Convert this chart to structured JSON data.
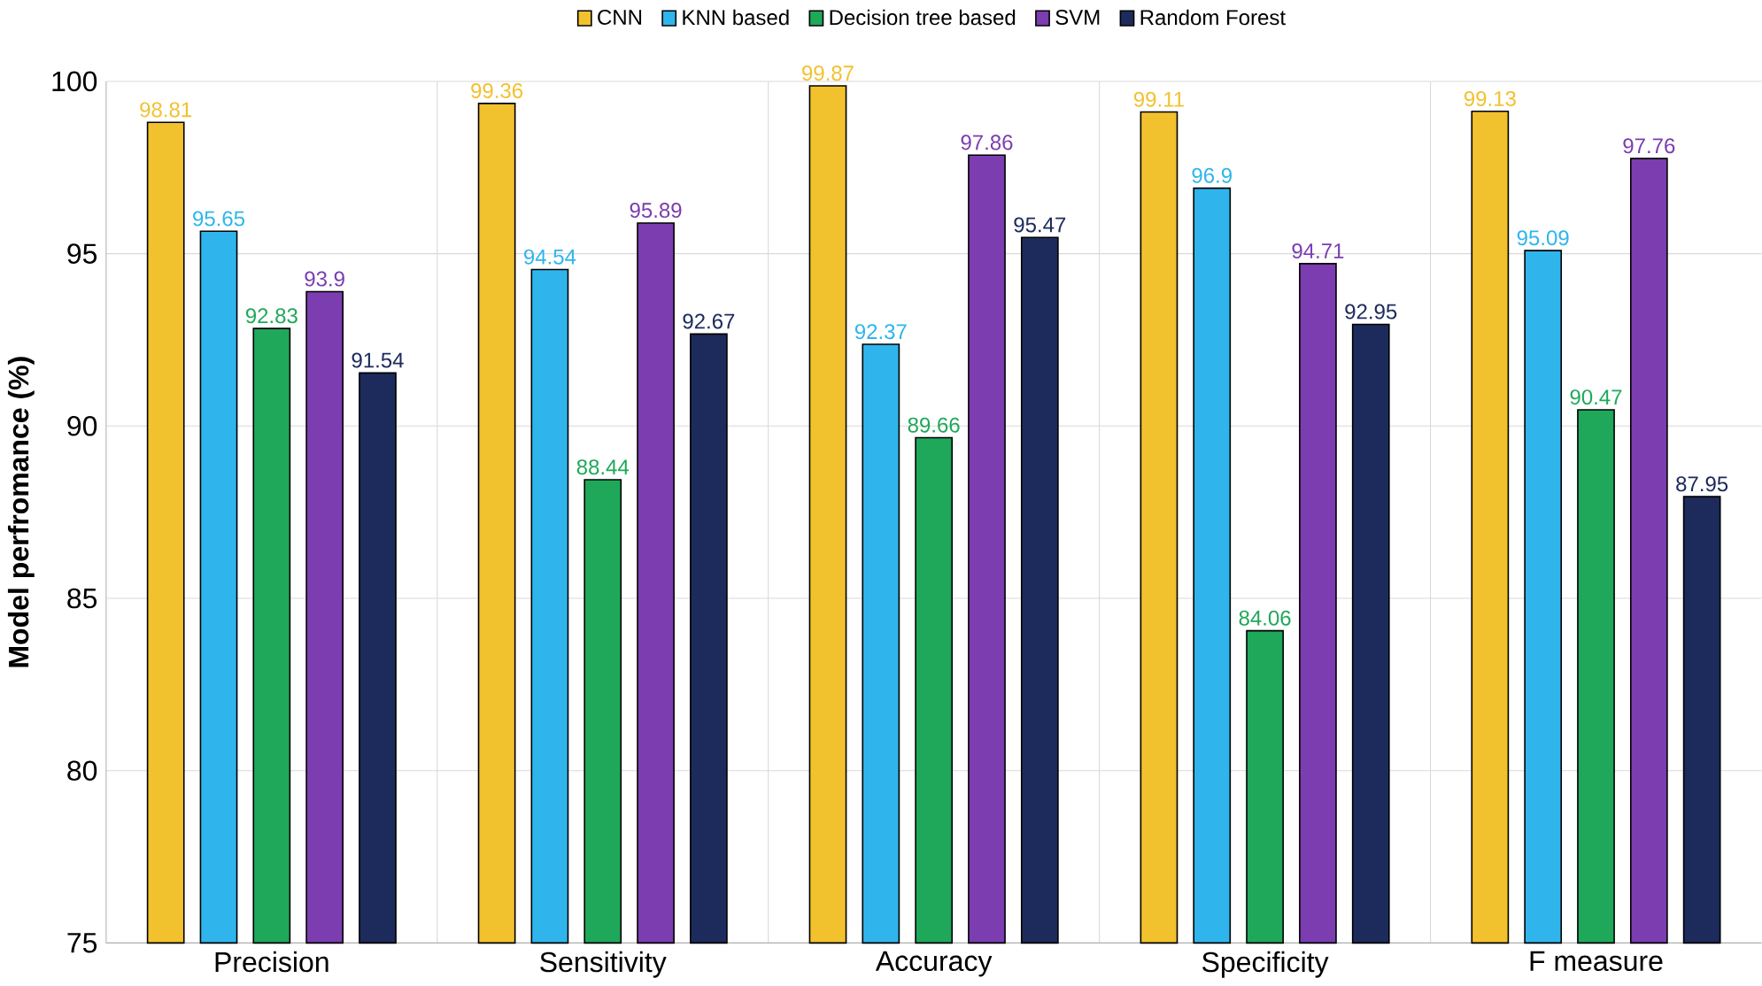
{
  "chart_data": {
    "type": "bar",
    "ylabel": "Model perfromance (%)",
    "categories": [
      "Precision",
      "Sensitivity",
      "Accuracy",
      "Specificity",
      "F measure"
    ],
    "series": [
      {
        "name": "CNN",
        "color": "#f2c12e",
        "values": [
          98.81,
          99.36,
          99.87,
          99.11,
          99.13
        ]
      },
      {
        "name": "KNN based",
        "color": "#2fb5ec",
        "values": [
          95.65,
          94.54,
          92.37,
          96.9,
          95.09
        ]
      },
      {
        "name": "Decision tree based",
        "color": "#1fa85a",
        "values": [
          92.83,
          88.44,
          89.66,
          84.06,
          90.47
        ]
      },
      {
        "name": "SVM",
        "color": "#7b3db0",
        "values": [
          93.9,
          95.89,
          97.86,
          94.71,
          97.76
        ]
      },
      {
        "name": "Random Forest",
        "color": "#1d2b5c",
        "values": [
          91.54,
          92.67,
          95.47,
          92.95,
          87.95
        ]
      }
    ],
    "ylim": [
      75,
      100
    ],
    "yticks": [
      75,
      80,
      85,
      90,
      95,
      100
    ],
    "grid": true,
    "legend": "top",
    "data_labels": true
  }
}
